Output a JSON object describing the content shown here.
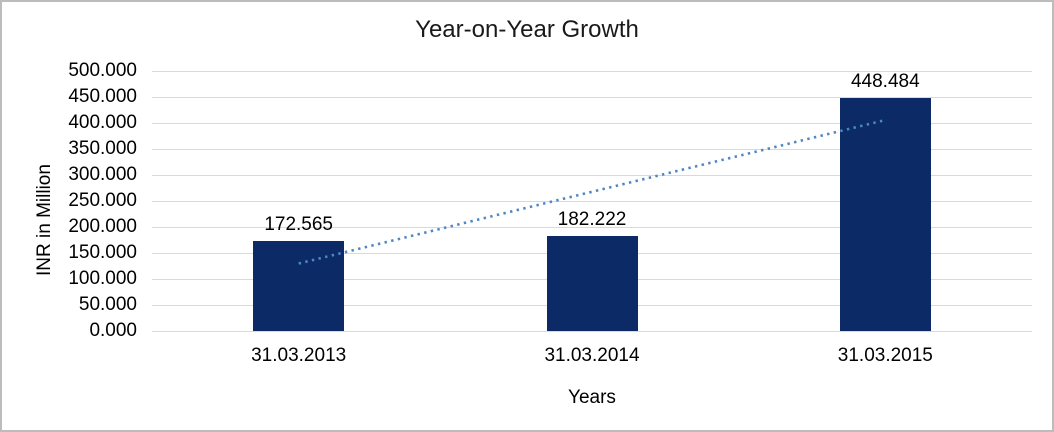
{
  "chart_data": {
    "type": "bar",
    "title": "Year-on-Year Growth",
    "xlabel": "Years",
    "ylabel": "INR in Million",
    "categories": [
      "31.03.2013",
      "31.03.2014",
      "31.03.2015"
    ],
    "values": [
      172.565,
      182.222,
      448.484
    ],
    "data_labels": [
      "172.565",
      "182.222",
      "448.484"
    ],
    "ylim": [
      0,
      500
    ],
    "ytick_step": 50,
    "ytick_labels": [
      "0.000",
      "50.000",
      "100.000",
      "150.000",
      "200.000",
      "250.000",
      "300.000",
      "350.000",
      "400.000",
      "450.000",
      "500.000"
    ],
    "grid": true,
    "legend": "none",
    "trendline": {
      "type": "linear",
      "style": "dotted"
    },
    "colors": {
      "bar": "#0b2a66",
      "trendline": "#4f86c6",
      "gridline": "#d9d9d9",
      "text": "#000000",
      "border": "#bcbcbc",
      "background": "#ffffff"
    }
  }
}
